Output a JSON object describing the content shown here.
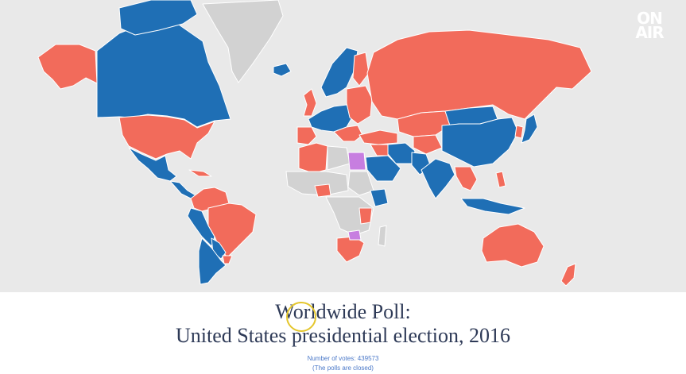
{
  "logo": {
    "line1": "ON",
    "line2": "AIR"
  },
  "title": {
    "line1": "Worldwide Poll:",
    "line2": "United States presidential election, 2016"
  },
  "votes": {
    "label": "Number of votes:",
    "count": "439573",
    "status": "(The polls are closed)"
  },
  "colors": {
    "red": "#f26b5b",
    "blue": "#1f6fb5",
    "purple": "#c77ee0",
    "no_data": "#d2d2d2",
    "ocean": "#e9e9e9"
  }
}
